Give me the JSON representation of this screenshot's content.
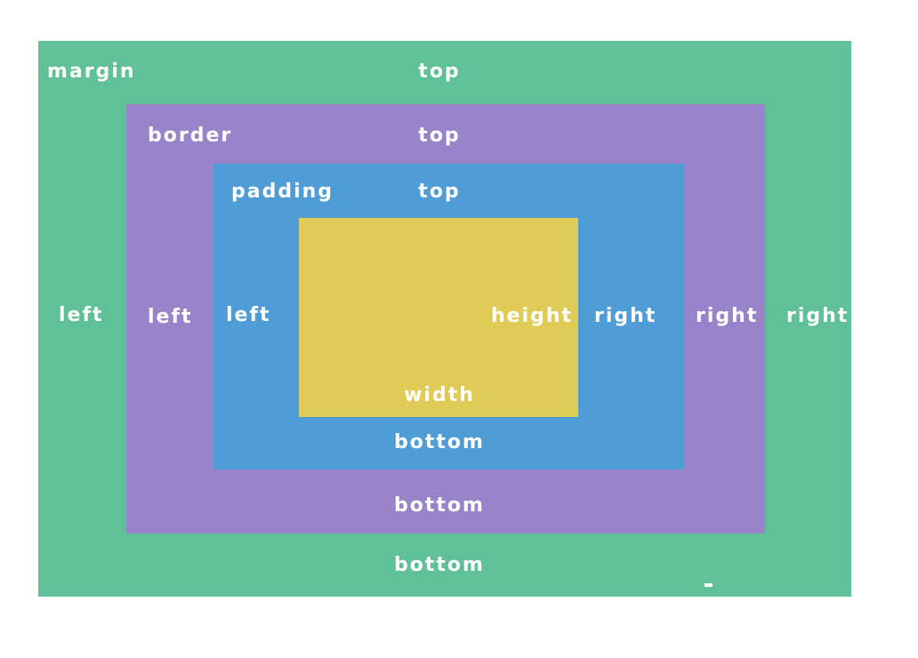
{
  "colors": {
    "margin": "#60c097",
    "border": "#9a84c9",
    "padding": "#4f9dd6",
    "content": "#e1cb57",
    "label": "#ffffff"
  },
  "margin": {
    "title": "margin",
    "top": "top",
    "left": "left",
    "right": "right",
    "bottom": "bottom",
    "mark": "-"
  },
  "border": {
    "title": "border",
    "top": "top",
    "left": "left",
    "right": "right",
    "bottom": "bottom"
  },
  "padding": {
    "title": "padding",
    "top": "top",
    "left": "left",
    "right": "right",
    "bottom": "bottom"
  },
  "content": {
    "height": "height",
    "width": "width"
  }
}
